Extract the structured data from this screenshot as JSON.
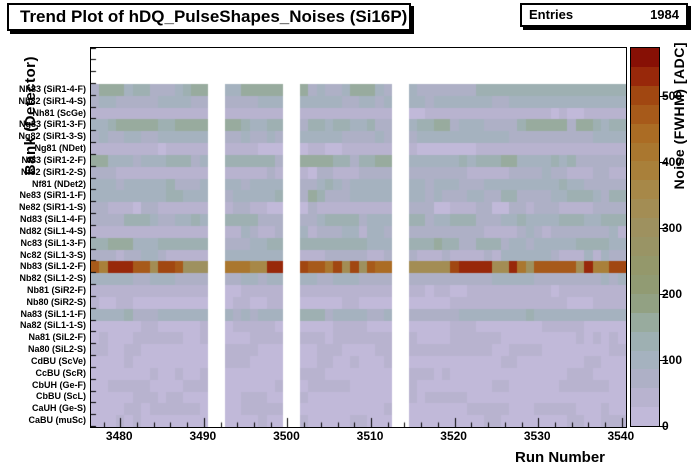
{
  "header": {
    "title": "Trend Plot of hDQ_PulseShapes_Noises (Si16P)"
  },
  "stats": {
    "entries_label": "Entries",
    "entries_value": "1984"
  },
  "chart_data": {
    "type": "heatmap",
    "title": "Trend Plot of hDQ_PulseShapes_Noises (Si16P)",
    "xlabel": "Run Number",
    "ylabel": "Bank (Detector)",
    "zlabel": "Noise (FWHM) [ADC]",
    "entries": 1984,
    "run_range": [
      3477,
      3540
    ],
    "x_ticks": [
      3480,
      3490,
      3500,
      3510,
      3520,
      3530,
      3540
    ],
    "x_minor_tick_step": 2,
    "z_ticks": [
      0,
      100,
      200,
      300,
      400,
      500
    ],
    "z_max": 575,
    "grid": false,
    "legend_position": "right-colorbar",
    "missing_runs": [
      3491,
      3492,
      3500,
      3501,
      3513,
      3514
    ],
    "missing_run_columns": [
      14,
      15,
      23,
      24,
      36,
      37
    ],
    "empty_top_bins": 3,
    "palette_stops": [
      [
        0,
        "#c6bcde"
      ],
      [
        60,
        "#b2b0c9"
      ],
      [
        110,
        "#a2b2bd"
      ],
      [
        150,
        "#9aaea6"
      ],
      [
        200,
        "#8f9d77"
      ],
      [
        250,
        "#95976a"
      ],
      [
        300,
        "#9e9160"
      ],
      [
        350,
        "#a68a4c"
      ],
      [
        400,
        "#aa7d35"
      ],
      [
        450,
        "#ab6a22"
      ],
      [
        500,
        "#a24a12"
      ],
      [
        540,
        "#951f08"
      ],
      [
        575,
        "#7d0603"
      ]
    ],
    "rows": [
      {
        "label": "Nh83 (SiR1-4-F)",
        "mean_adc": 115,
        "spread_adc": 45
      },
      {
        "label": "Nh82 (SiR1-4-S)",
        "mean_adc": 92,
        "spread_adc": 14
      },
      {
        "label": "Nh81 (ScGe)",
        "mean_adc": 32,
        "spread_adc": 10
      },
      {
        "label": "Ng83 (SiR1-3-F)",
        "mean_adc": 115,
        "spread_adc": 42
      },
      {
        "label": "Ng82 (SiR1-3-S)",
        "mean_adc": 92,
        "spread_adc": 14
      },
      {
        "label": "Ng81 (NDet)",
        "mean_adc": 32,
        "spread_adc": 10
      },
      {
        "label": "Nf83 (SiR1-2-F)",
        "mean_adc": 112,
        "spread_adc": 42
      },
      {
        "label": "Nf82 (SiR1-2-S)",
        "mean_adc": 58,
        "spread_adc": 32
      },
      {
        "label": "Nf81 (NDet2)",
        "mean_adc": 95,
        "spread_adc": 26
      },
      {
        "label": "Ne83 (SiR1-1-F)",
        "mean_adc": 110,
        "spread_adc": 40
      },
      {
        "label": "Ne82 (SiR1-1-S)",
        "mean_adc": 48,
        "spread_adc": 30
      },
      {
        "label": "Nd83 (SiL1-4-F)",
        "mean_adc": 102,
        "spread_adc": 36
      },
      {
        "label": "Nd82 (SiL1-4-S)",
        "mean_adc": 62,
        "spread_adc": 34
      },
      {
        "label": "Nc83 (SiL1-3-F)",
        "mean_adc": 110,
        "spread_adc": 40
      },
      {
        "label": "Nc82 (SiL1-3-S)",
        "mean_adc": 72,
        "spread_adc": 38
      },
      {
        "label": "Nb83 (SiL1-2-F)",
        "mean_adc": 430,
        "spread_adc": 130
      },
      {
        "label": "Nb82 (SiL1-2-S)",
        "mean_adc": 88,
        "spread_adc": 26
      },
      {
        "label": "Nb81 (SiR2-F)",
        "mean_adc": 34,
        "spread_adc": 10
      },
      {
        "label": "Nb80 (SiR2-S)",
        "mean_adc": 34,
        "spread_adc": 10
      },
      {
        "label": "Na83 (SiL1-1-F)",
        "mean_adc": 96,
        "spread_adc": 28
      },
      {
        "label": "Na82 (SiL1-1-S)",
        "mean_adc": 30,
        "spread_adc": 8
      },
      {
        "label": "Na81 (SiL2-F)",
        "mean_adc": 28,
        "spread_adc": 6
      },
      {
        "label": "Na80 (SiL2-S)",
        "mean_adc": 28,
        "spread_adc": 6
      },
      {
        "label": "CdBU (ScVe)",
        "mean_adc": 26,
        "spread_adc": 5
      },
      {
        "label": "CcBU (ScR)",
        "mean_adc": 26,
        "spread_adc": 5
      },
      {
        "label": "CbUH (Ge-F)",
        "mean_adc": 26,
        "spread_adc": 5
      },
      {
        "label": "CbBU (ScL)",
        "mean_adc": 26,
        "spread_adc": 5
      },
      {
        "label": "CaUH (Ge-S)",
        "mean_adc": 26,
        "spread_adc": 5
      },
      {
        "label": "CaBU (muSc)",
        "mean_adc": 26,
        "spread_adc": 5
      }
    ]
  }
}
